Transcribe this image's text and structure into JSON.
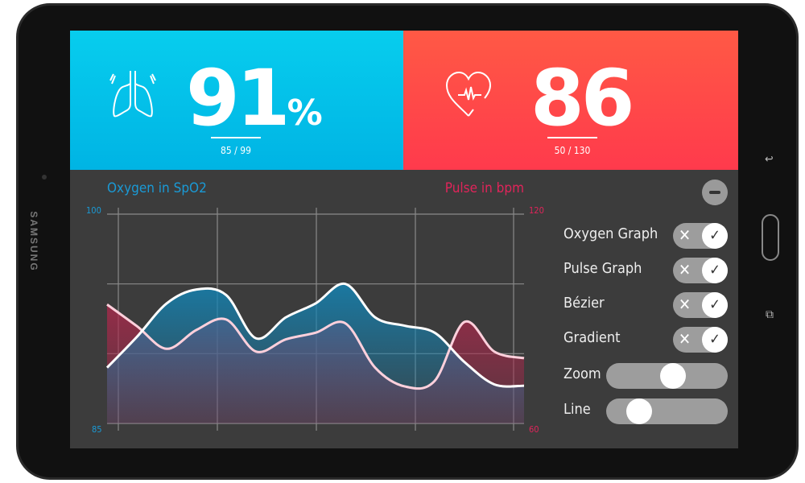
{
  "device": {
    "brand": "SAMSUNG"
  },
  "oxygen": {
    "value": "91",
    "unit": "%",
    "range": "85 / 99",
    "icon": "lungs-icon",
    "color": "#00b9e8"
  },
  "pulse": {
    "value": "86",
    "range": "50 / 130",
    "icon": "heart-pulse-icon",
    "color": "#ff4548"
  },
  "header_actions": {
    "add": "+",
    "battery_icon": "battery-icon"
  },
  "chart_data": {
    "type": "area",
    "x": [
      0,
      1,
      2,
      3,
      4,
      5,
      6,
      7,
      8,
      9,
      10,
      11,
      12,
      13,
      14
    ],
    "series": [
      {
        "name": "Oxygen in SpO2",
        "axis": "left",
        "color": "#1a8ab8",
        "values": [
          89.0,
          91.2,
          93.6,
          94.6,
          94.2,
          91.1,
          92.6,
          93.6,
          95.0,
          92.6,
          92.0,
          91.5,
          89.4,
          87.8,
          87.7
        ]
      },
      {
        "name": "Pulse in bpm",
        "axis": "right",
        "color": "#a3234a",
        "values": [
          94.1,
          87.9,
          81.4,
          86.8,
          89.8,
          80.6,
          84.1,
          86.0,
          88.7,
          76.0,
          70.6,
          72.2,
          89.1,
          80.6,
          78.7
        ]
      }
    ],
    "left_axis": {
      "title": "Oxygen in SpO2",
      "ylim": [
        85,
        100
      ],
      "ticks": [
        "100",
        "85"
      ],
      "color": "#1a9ad6"
    },
    "right_axis": {
      "title": "Pulse in bpm",
      "ylim": [
        60,
        120
      ],
      "ticks": [
        "120",
        "60"
      ],
      "color": "#e0245a"
    },
    "grid": true
  },
  "controls": {
    "toggles": [
      {
        "label": "Oxygen Graph",
        "on": true
      },
      {
        "label": "Pulse Graph",
        "on": true
      },
      {
        "label": "Bézier",
        "on": true
      },
      {
        "label": "Gradient",
        "on": true
      }
    ],
    "off_glyph": "✕",
    "on_glyph": "✓",
    "sliders": [
      {
        "label": "Zoom",
        "value": 0.56
      },
      {
        "label": "Line",
        "value": 0.21
      }
    ]
  }
}
